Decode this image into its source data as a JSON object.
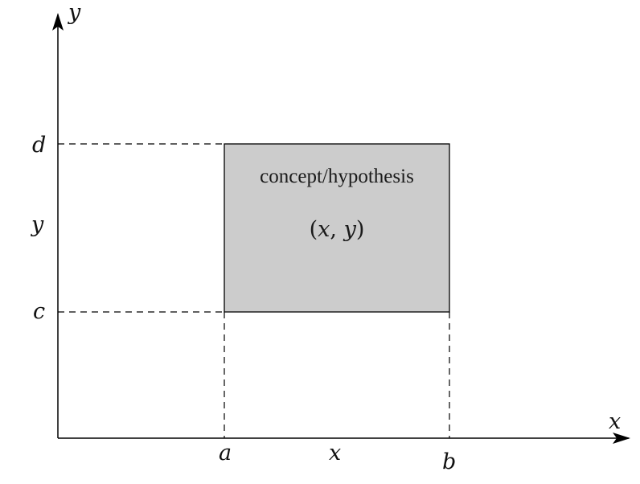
{
  "axes": {
    "x_label": "x",
    "y_label": "y"
  },
  "x_ticks": {
    "a": "a",
    "b": "b",
    "range": "x"
  },
  "y_ticks": {
    "c": "c",
    "d": "d",
    "range": "y"
  },
  "box": {
    "title": "concept/hypothesis",
    "coords": {
      "open": "(",
      "x": "x",
      "comma": ", ",
      "y": "y",
      "close": ")"
    }
  },
  "colors": {
    "box_fill": "#cccccc",
    "line": "#000000"
  }
}
